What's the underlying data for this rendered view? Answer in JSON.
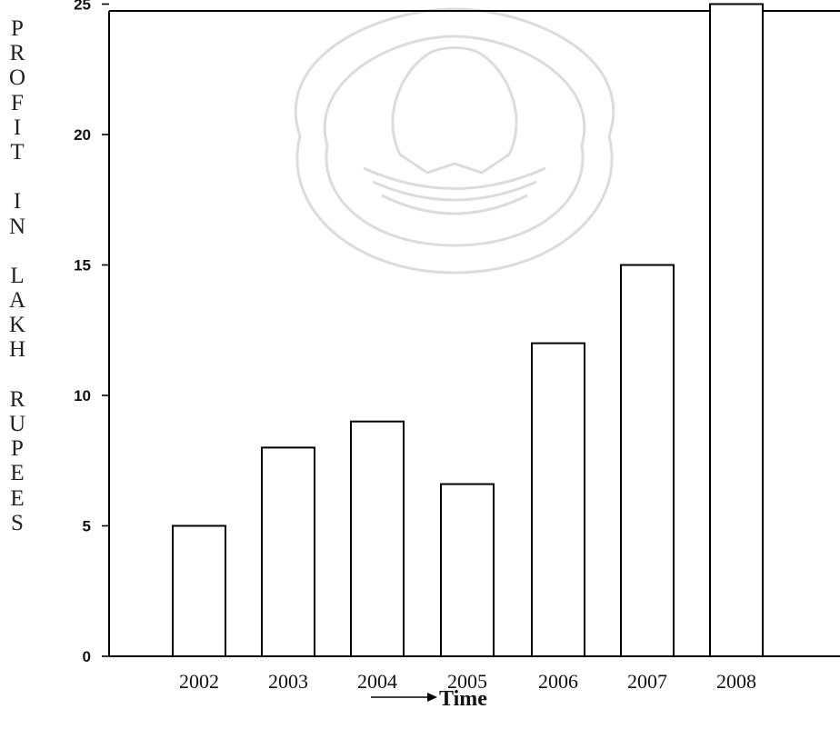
{
  "chart_data": {
    "type": "bar",
    "title": "",
    "xlabel": "Time",
    "ylabel": "PROFIT IN LAKH RUPEES",
    "categories": [
      "2002",
      "2003",
      "2004",
      "2005",
      "2006",
      "2007",
      "2008"
    ],
    "values": [
      5,
      8,
      9,
      6.6,
      12,
      15,
      25
    ],
    "ylim": [
      0,
      26
    ],
    "yticks": [
      0,
      5,
      10,
      15,
      20,
      25
    ],
    "ytick_labels": [
      "0",
      "5",
      "10",
      "15",
      "20",
      "25"
    ],
    "grid": false,
    "legend": "none",
    "bar_fill": "#ffffff",
    "bar_stroke": "#000000"
  },
  "y_title_letters": [
    "P",
    "R",
    "O",
    "F",
    "I",
    "T",
    "",
    "I",
    "N",
    "",
    "L",
    "A",
    "K",
    "H",
    "",
    "R",
    "U",
    "P",
    "E",
    "E",
    "S"
  ]
}
